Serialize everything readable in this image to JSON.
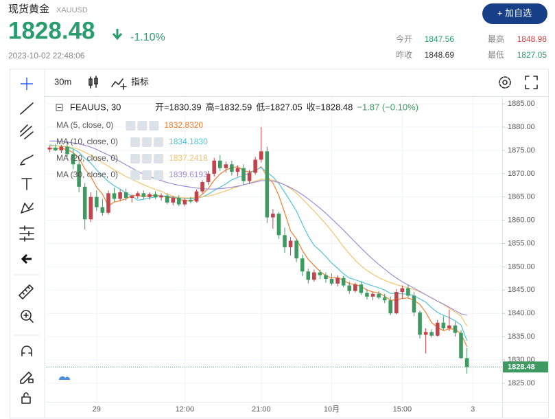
{
  "header": {
    "name": "现货黄金",
    "symbol": "XAUUSD",
    "price": "1828.48",
    "change": "-1.10%",
    "time": "2023-10-02 22:48:06",
    "button": "+ 加自选",
    "stats": [
      {
        "label": "今开",
        "value": "1847.56",
        "color": "#2a9d6e"
      },
      {
        "label": "最高",
        "value": "1848.98",
        "color": "#e0393e"
      },
      {
        "label": "昨收",
        "value": "1848.69",
        "color": "#333333"
      },
      {
        "label": "最低",
        "value": "1827.05",
        "color": "#2a9d6e"
      }
    ]
  },
  "toolbar": {
    "interval": "30m",
    "indicators": "指标"
  },
  "chart_data": {
    "type": "candlestick",
    "symbol_label": "FEAUUS, 30",
    "ohlc_labels": [
      "开=1830.39",
      "高=1832.59",
      "低=1827.05",
      "收=1828.48",
      "−1.87 (−0.10%)"
    ],
    "up_color": "#c2434b",
    "down_color": "#3f9a62",
    "ohlc": [
      [
        1875.2,
        1876.0,
        1874.6,
        1875.6
      ],
      [
        1875.6,
        1876.4,
        1874.8,
        1875.0
      ],
      [
        1875.0,
        1876.2,
        1874.4,
        1875.8
      ],
      [
        1875.8,
        1877.0,
        1873.6,
        1874.2
      ],
      [
        1874.2,
        1875.4,
        1871.0,
        1872.0
      ],
      [
        1872.0,
        1873.0,
        1866.0,
        1867.2
      ],
      [
        1867.2,
        1868.0,
        1858.0,
        1860.2
      ],
      [
        1860.2,
        1866.0,
        1859.6,
        1865.0
      ],
      [
        1865.0,
        1866.4,
        1862.0,
        1862.8
      ],
      [
        1862.8,
        1864.6,
        1861.0,
        1861.6
      ],
      [
        1861.6,
        1866.4,
        1861.2,
        1865.8
      ],
      [
        1865.8,
        1867.0,
        1864.0,
        1864.6
      ],
      [
        1864.6,
        1866.6,
        1864.0,
        1866.0
      ],
      [
        1866.0,
        1866.8,
        1864.2,
        1864.8
      ],
      [
        1864.8,
        1865.6,
        1863.8,
        1865.2
      ],
      [
        1865.2,
        1866.2,
        1864.6,
        1865.8
      ],
      [
        1865.8,
        1866.4,
        1864.6,
        1865.0
      ],
      [
        1865.0,
        1866.0,
        1864.4,
        1865.6
      ],
      [
        1865.6,
        1866.2,
        1864.6,
        1864.9
      ],
      [
        1864.9,
        1865.8,
        1864.2,
        1865.3
      ],
      [
        1865.3,
        1865.8,
        1863.4,
        1863.8
      ],
      [
        1863.8,
        1865.2,
        1863.2,
        1864.8
      ],
      [
        1864.8,
        1865.4,
        1863.0,
        1863.4
      ],
      [
        1863.4,
        1864.8,
        1863.0,
        1864.4
      ],
      [
        1864.4,
        1865.0,
        1863.6,
        1864.0
      ],
      [
        1864.0,
        1866.6,
        1863.8,
        1866.2
      ],
      [
        1866.2,
        1868.6,
        1865.8,
        1868.2
      ],
      [
        1868.2,
        1870.6,
        1867.6,
        1870.0
      ],
      [
        1870.0,
        1873.4,
        1869.4,
        1872.8
      ],
      [
        1872.8,
        1874.0,
        1870.6,
        1871.2
      ],
      [
        1871.2,
        1872.6,
        1870.2,
        1872.0
      ],
      [
        1872.0,
        1872.8,
        1869.6,
        1870.4
      ],
      [
        1870.4,
        1871.8,
        1869.4,
        1871.2
      ],
      [
        1871.2,
        1872.0,
        1867.6,
        1868.4
      ],
      [
        1868.4,
        1870.8,
        1867.8,
        1870.2
      ],
      [
        1870.2,
        1873.6,
        1869.8,
        1873.0
      ],
      [
        1873.0,
        1880.0,
        1872.4,
        1874.8
      ],
      [
        1874.8,
        1875.8,
        1859.4,
        1860.6
      ],
      [
        1860.6,
        1862.4,
        1858.2,
        1861.4
      ],
      [
        1861.4,
        1861.8,
        1856.0,
        1856.8
      ],
      [
        1856.8,
        1858.4,
        1853.0,
        1854.2
      ],
      [
        1854.2,
        1856.4,
        1852.4,
        1855.6
      ],
      [
        1855.6,
        1856.0,
        1851.0,
        1851.8
      ],
      [
        1851.8,
        1852.6,
        1848.0,
        1849.0
      ],
      [
        1849.0,
        1849.6,
        1846.4,
        1847.2
      ],
      [
        1847.2,
        1849.4,
        1846.8,
        1848.8
      ],
      [
        1848.8,
        1849.4,
        1847.4,
        1848.2
      ],
      [
        1848.2,
        1848.8,
        1846.6,
        1847.4
      ],
      [
        1847.4,
        1848.6,
        1846.0,
        1846.4
      ],
      [
        1846.4,
        1848.2,
        1845.8,
        1847.6
      ],
      [
        1847.6,
        1848.0,
        1845.6,
        1846.0
      ],
      [
        1846.0,
        1846.8,
        1844.2,
        1844.8
      ],
      [
        1844.8,
        1846.6,
        1844.4,
        1846.2
      ],
      [
        1846.2,
        1846.8,
        1844.0,
        1844.4
      ],
      [
        1844.4,
        1845.2,
        1843.0,
        1843.6
      ],
      [
        1843.6,
        1844.6,
        1842.8,
        1844.2
      ],
      [
        1844.2,
        1844.8,
        1843.0,
        1843.4
      ],
      [
        1843.4,
        1844.2,
        1842.2,
        1842.8
      ],
      [
        1842.8,
        1843.6,
        1839.6,
        1840.0
      ],
      [
        1840.0,
        1845.2,
        1839.8,
        1844.6
      ],
      [
        1844.6,
        1846.0,
        1843.2,
        1845.4
      ],
      [
        1845.4,
        1846.2,
        1843.4,
        1843.8
      ],
      [
        1843.8,
        1844.6,
        1839.4,
        1840.2
      ],
      [
        1840.2,
        1840.6,
        1834.6,
        1835.4
      ],
      [
        1835.4,
        1836.8,
        1831.4,
        1836.0
      ],
      [
        1836.0,
        1836.6,
        1834.8,
        1835.2
      ],
      [
        1835.2,
        1838.6,
        1835.0,
        1838.0
      ],
      [
        1838.0,
        1839.4,
        1836.4,
        1836.8
      ],
      [
        1836.8,
        1840.8,
        1836.2,
        1837.4
      ],
      [
        1837.4,
        1838.2,
        1835.0,
        1835.8
      ],
      [
        1835.8,
        1836.4,
        1830.2,
        1830.4
      ],
      [
        1830.39,
        1832.59,
        1827.05,
        1828.48
      ]
    ],
    "ma": [
      {
        "name": "MA (5, close, 0)",
        "color": "#f57c2b",
        "value_label": "1832.8320",
        "values": [
          1875.5,
          1875.4,
          1875.4,
          1875.2,
          1874.5,
          1873.4,
          1871.0,
          1869.4,
          1867.1,
          1865.6,
          1863.1,
          1863.9,
          1864.2,
          1864.6,
          1865.3,
          1865.3,
          1865.1,
          1865.3,
          1865.3,
          1865.3,
          1864.9,
          1864.9,
          1864.4,
          1864.3,
          1864.1,
          1864.6,
          1865.6,
          1866.8,
          1868.6,
          1869.9,
          1870.8,
          1871.3,
          1871.5,
          1870.6,
          1870.4,
          1870.6,
          1871.5,
          1869.4,
          1868.0,
          1865.3,
          1861.6,
          1857.7,
          1856.0,
          1853.5,
          1851.6,
          1850.3,
          1849.0,
          1848.1,
          1847.6,
          1847.7,
          1847.1,
          1846.4,
          1846.2,
          1845.8,
          1845.0,
          1844.6,
          1844.4,
          1843.7,
          1842.8,
          1842.9,
          1843.2,
          1843.3,
          1842.8,
          1841.9,
          1840.2,
          1838.0,
          1837.0,
          1836.3,
          1836.7,
          1836.6,
          1835.6,
          1832.832
        ]
      },
      {
        "name": "MA (10, close, 0)",
        "color": "#52c3d8",
        "value_label": "1834.1830",
        "values": [
          1876.2,
          1876.0,
          1875.9,
          1875.7,
          1875.3,
          1874.6,
          1873.3,
          1872.3,
          1870.8,
          1869.5,
          1868.3,
          1867.4,
          1866.7,
          1865.8,
          1865.2,
          1864.3,
          1864.5,
          1864.8,
          1865.0,
          1865.3,
          1865.1,
          1865.0,
          1864.8,
          1864.7,
          1864.6,
          1864.7,
          1865.0,
          1865.6,
          1866.4,
          1867.1,
          1867.8,
          1868.7,
          1869.2,
          1869.6,
          1870.1,
          1870.8,
          1871.3,
          1870.3,
          1869.3,
          1867.9,
          1866.0,
          1864.0,
          1862.0,
          1859.2,
          1856.6,
          1854.6,
          1853.5,
          1852.2,
          1850.8,
          1849.7,
          1848.5,
          1847.6,
          1847.2,
          1846.8,
          1846.3,
          1845.9,
          1845.5,
          1845.0,
          1844.3,
          1844.3,
          1844.2,
          1844.1,
          1843.8,
          1843.1,
          1842.4,
          1841.2,
          1840.2,
          1839.6,
          1839.1,
          1838.4,
          1837.5,
          1834.183
        ]
      },
      {
        "name": "MA (20, close, 0)",
        "color": "#f5c36a",
        "value_label": "1837.2418",
        "values": [
          1876.0,
          1876.0,
          1875.9,
          1875.8,
          1875.6,
          1875.2,
          1874.6,
          1874.0,
          1873.2,
          1872.4,
          1871.6,
          1870.8,
          1870.1,
          1869.4,
          1868.8,
          1868.2,
          1867.6,
          1867.1,
          1866.6,
          1866.2,
          1865.6,
          1865.2,
          1864.9,
          1864.8,
          1864.8,
          1864.9,
          1865.0,
          1865.2,
          1865.5,
          1865.9,
          1866.3,
          1866.8,
          1867.2,
          1867.6,
          1868.0,
          1868.4,
          1868.8,
          1868.8,
          1868.6,
          1868.2,
          1867.6,
          1866.8,
          1865.8,
          1864.6,
          1863.3,
          1862.0,
          1860.6,
          1859.2,
          1857.7,
          1856.0,
          1854.3,
          1852.8,
          1851.4,
          1850.2,
          1849.2,
          1848.4,
          1847.7,
          1847.1,
          1846.6,
          1846.2,
          1845.8,
          1845.5,
          1845.1,
          1844.6,
          1844.0,
          1843.3,
          1842.6,
          1841.9,
          1841.1,
          1840.3,
          1839.4,
          1837.2418
        ]
      },
      {
        "name": "MA (30, close, 0)",
        "color": "#9d8cd8",
        "value_label": "1839.6193",
        "values": [
          1877.0,
          1877.0,
          1876.9,
          1876.8,
          1876.6,
          1876.4,
          1876.1,
          1875.7,
          1875.2,
          1874.6,
          1874.0,
          1873.3,
          1872.6,
          1871.9,
          1871.2,
          1870.5,
          1869.9,
          1869.4,
          1868.9,
          1868.5,
          1868.1,
          1867.8,
          1867.5,
          1867.3,
          1867.1,
          1866.9,
          1866.8,
          1866.7,
          1866.7,
          1866.8,
          1866.9,
          1867.1,
          1867.3,
          1867.6,
          1867.9,
          1868.2,
          1868.5,
          1868.5,
          1868.4,
          1868.1,
          1867.6,
          1867.0,
          1866.3,
          1865.5,
          1864.6,
          1863.6,
          1862.6,
          1861.5,
          1860.3,
          1859.1,
          1857.9,
          1856.6,
          1855.3,
          1854.0,
          1852.8,
          1851.6,
          1850.5,
          1849.5,
          1848.5,
          1847.6,
          1846.8,
          1846.1,
          1845.4,
          1844.7,
          1844.0,
          1843.3,
          1842.6,
          1842.0,
          1841.3,
          1840.6,
          1839.9,
          1839.6193
        ]
      }
    ],
    "xlim": [
      -0.5,
      77
    ],
    "xticks": [
      {
        "value": 8,
        "label": "29"
      },
      {
        "value": 23,
        "label": "12:00"
      },
      {
        "value": 36,
        "label": "21:00"
      },
      {
        "value": 48,
        "label": "10月"
      },
      {
        "value": 60,
        "label": "15:00"
      },
      {
        "value": 72,
        "label": "3"
      }
    ],
    "ylim": [
      1821,
      1886.5
    ],
    "yticks": [
      {
        "value": 1825,
        "label": "1825.00"
      },
      {
        "value": 1830,
        "label": "1830.00"
      },
      {
        "value": 1835,
        "label": "1835.00"
      },
      {
        "value": 1840,
        "label": "1840.00"
      },
      {
        "value": 1845,
        "label": "1845.00"
      },
      {
        "value": 1850,
        "label": "1850.00"
      },
      {
        "value": 1855,
        "label": "1855.00"
      },
      {
        "value": 1860,
        "label": "1860.00"
      },
      {
        "value": 1865,
        "label": "1865.00"
      },
      {
        "value": 1870,
        "label": "1870.00"
      },
      {
        "value": 1875,
        "label": "1875.00"
      },
      {
        "value": 1880,
        "label": "1880.00"
      },
      {
        "value": 1885,
        "label": "1885.00"
      }
    ],
    "grid": true
  }
}
